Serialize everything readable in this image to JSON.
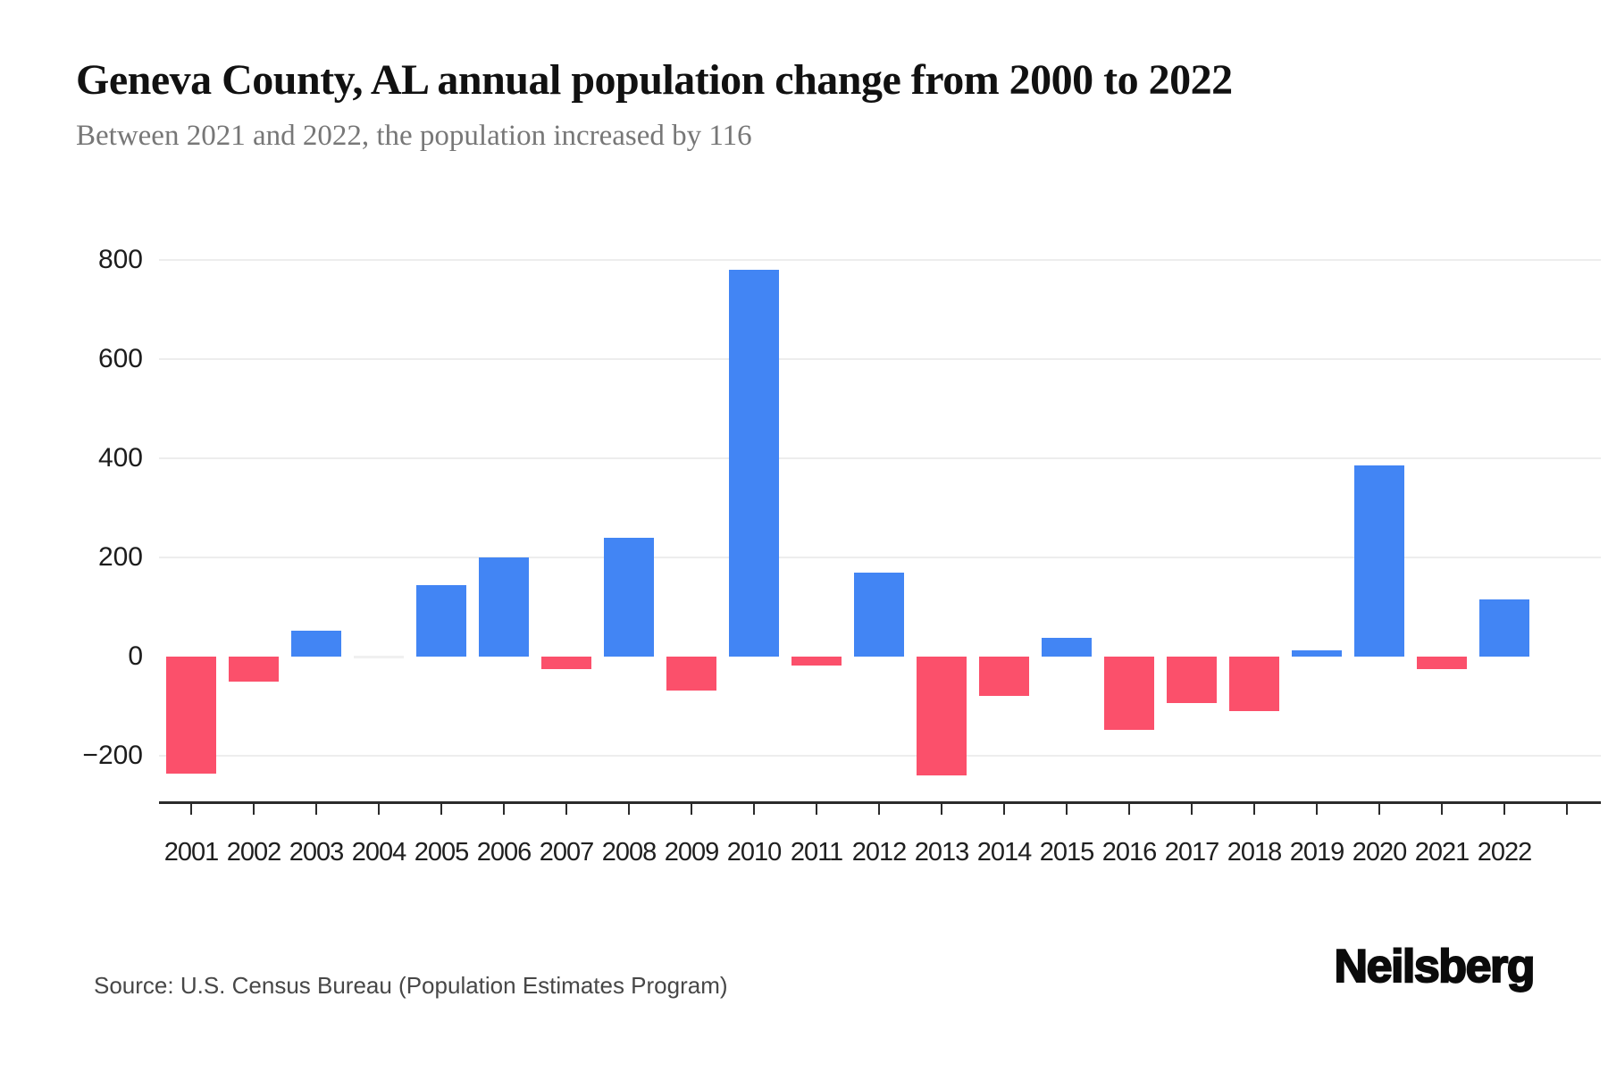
{
  "header": {
    "title": "Geneva County, AL annual population change from 2000 to 2022",
    "subtitle": "Between 2021 and 2022, the population increased by 116"
  },
  "footer": {
    "source": "Source: U.S. Census Bureau (Population Estimates Program)",
    "brand": "Neilsberg"
  },
  "chart_data": {
    "type": "bar",
    "title": "Geneva County, AL annual population change from 2000 to 2022",
    "subtitle": "Between 2021 and 2022, the population increased by 116",
    "xlabel": "",
    "ylabel": "",
    "categories": [
      "2001",
      "2002",
      "2003",
      "2004",
      "2005",
      "2006",
      "2007",
      "2008",
      "2009",
      "2010",
      "2011",
      "2012",
      "2013",
      "2014",
      "2015",
      "2016",
      "2017",
      "2018",
      "2019",
      "2020",
      "2021",
      "2022"
    ],
    "values": [
      -236,
      -50,
      52,
      0,
      145,
      200,
      -25,
      240,
      -68,
      780,
      -18,
      170,
      -240,
      -80,
      38,
      -147,
      -93,
      -110,
      12,
      385,
      -26,
      116
    ],
    "yticks": [
      800,
      600,
      400,
      200,
      0,
      -200
    ],
    "ylim": [
      -295,
      800
    ],
    "grid": "horizontal gridlines every 200 units, none at zero",
    "legend": "none",
    "positive_color": "#4285f4",
    "negative_color": "#fb506b",
    "zero_bar_color": "#f0f0f0",
    "gridline_color": "#ededed",
    "axis_color": "#2b2b2b"
  }
}
